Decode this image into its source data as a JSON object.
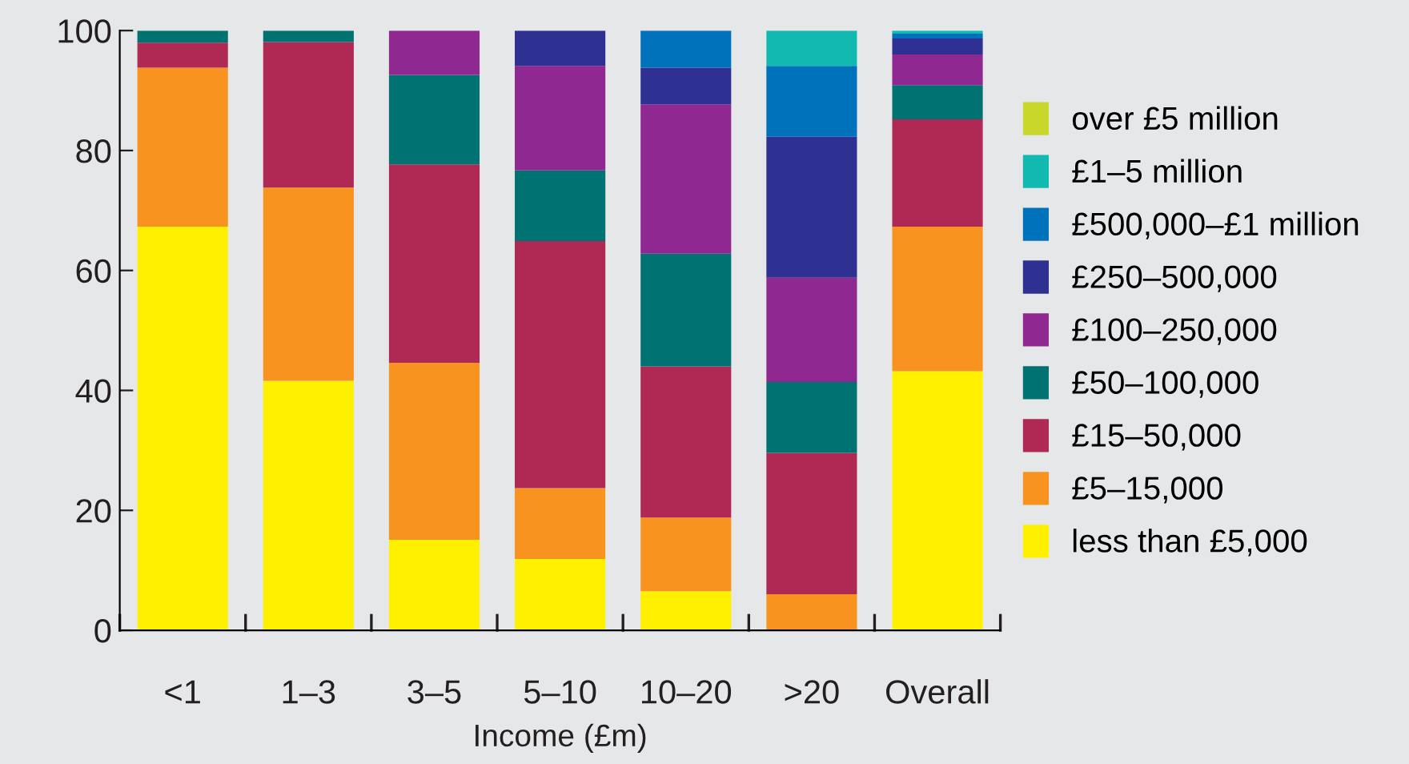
{
  "chart_data": {
    "type": "bar",
    "stacked": true,
    "xlabel": "Income (£m)",
    "categories": [
      "<1",
      "1–3",
      "3–5",
      "5–10",
      "10–20",
      ">20",
      "Overall"
    ],
    "series": [
      {
        "name": "less than £5,000",
        "color": "#fff000",
        "values": [
          67.3,
          41.6,
          15.1,
          11.9,
          6.5,
          0,
          43.2
        ]
      },
      {
        "name": "£5–15,000",
        "color": "#f7931e",
        "values": [
          26.5,
          32.2,
          29.5,
          11.8,
          12.3,
          6.0,
          24.1
        ]
      },
      {
        "name": "£15–50,000",
        "color": "#b02854",
        "values": [
          4.2,
          24.3,
          33.1,
          41.2,
          25.2,
          23.6,
          17.9
        ]
      },
      {
        "name": "£50–100,000",
        "color": "#007272",
        "values": [
          2.0,
          1.9,
          14.9,
          11.8,
          18.8,
          11.8,
          5.7
        ]
      },
      {
        "name": "£100–250,000",
        "color": "#8f2890",
        "values": [
          0,
          0,
          7.4,
          17.4,
          24.9,
          17.4,
          5.1
        ]
      },
      {
        "name": "£250–500,000",
        "color": "#2e3192",
        "values": [
          0,
          0,
          0,
          5.9,
          6.1,
          23.5,
          2.7
        ]
      },
      {
        "name": "£500,000–£1 million",
        "color": "#0072bc",
        "values": [
          0,
          0,
          0,
          0,
          6.2,
          11.8,
          0.8
        ]
      },
      {
        "name": "£1–5 million",
        "color": "#12b9b0",
        "values": [
          0,
          0,
          0,
          0,
          0,
          5.9,
          0.5
        ]
      },
      {
        "name": "over £5 million",
        "color": "#c8d72a",
        "values": [
          0,
          0,
          0,
          0,
          0,
          0,
          0
        ]
      }
    ],
    "ylim": [
      0,
      100
    ],
    "yticks": [
      0,
      20,
      40,
      60,
      80,
      100
    ],
    "grid": false,
    "legend": "right"
  }
}
